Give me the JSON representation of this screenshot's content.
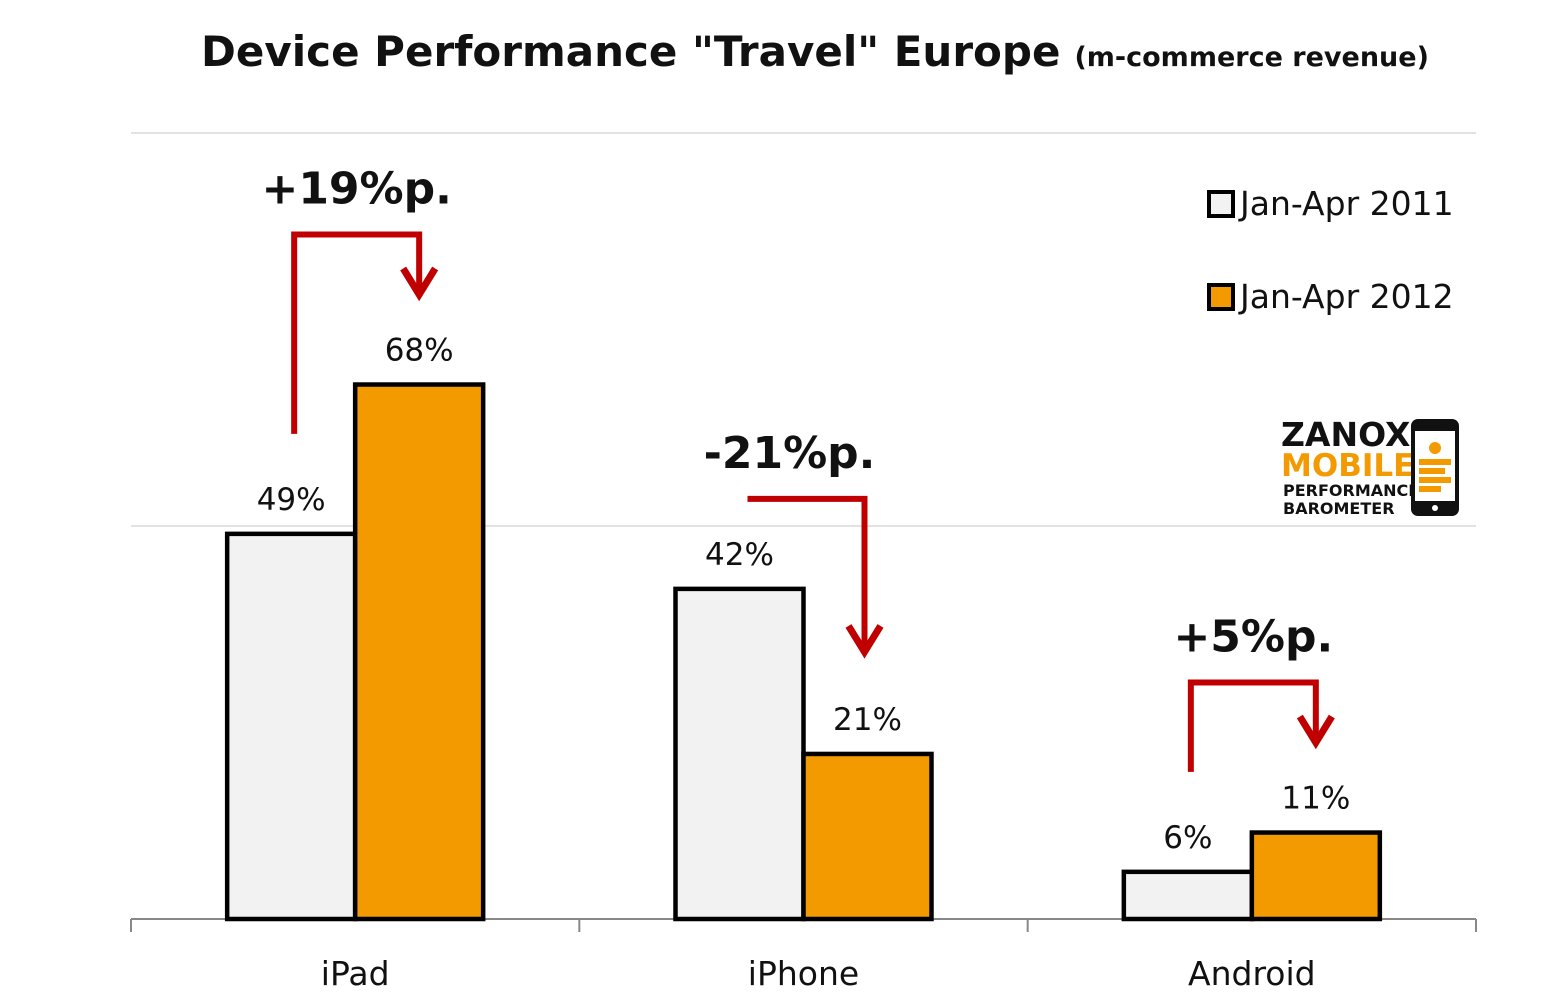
{
  "chart_data": {
    "type": "bar",
    "title": "Device Performance \"Travel\" Europe",
    "subtitle": "(m-commerce revenue)",
    "categories": [
      "iPad",
      "iPhone",
      "Android"
    ],
    "series": [
      {
        "name": "Jan-Apr 2011",
        "values": [
          49,
          42,
          6
        ],
        "labels": [
          "49%",
          "42%",
          "6%"
        ],
        "color": "#f2f2f2"
      },
      {
        "name": "Jan-Apr 2012",
        "values": [
          68,
          21,
          11
        ],
        "labels": [
          "68%",
          "21%",
          "11%"
        ],
        "color": "#f39a00"
      }
    ],
    "annotations": [
      "+19%p.",
      "-21%p.",
      "+5%p."
    ],
    "ylim": [
      0,
      100
    ],
    "grid": true,
    "legend_position": "top-right",
    "annotation_color": "#c00000"
  },
  "logo": {
    "line1": "ZANOX",
    "line2": "MOBILE",
    "line3": "PERFORMANCE",
    "line4": "BAROMETER"
  }
}
